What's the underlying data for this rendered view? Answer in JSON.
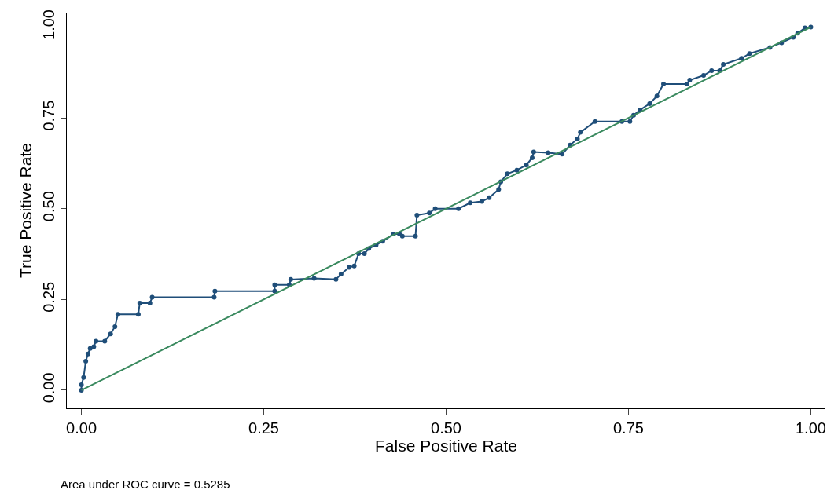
{
  "chart_data": {
    "type": "line",
    "xlabel": "False Positive Rate",
    "ylabel": "True Positive Rate",
    "annotations": [
      "Area under ROC curve = 0.5285"
    ],
    "xlim": [
      -0.02,
      1.02
    ],
    "ylim": [
      -0.05,
      1.04
    ],
    "xticks": [
      {
        "value": 0,
        "label": "0.00"
      },
      {
        "value": 0.25,
        "label": "0.25"
      },
      {
        "value": 0.5,
        "label": "0.50"
      },
      {
        "value": 0.75,
        "label": "0.75"
      },
      {
        "value": 1,
        "label": "1.00"
      }
    ],
    "yticks": [
      {
        "value": 0,
        "label": "0.00"
      },
      {
        "value": 0.25,
        "label": "0.25"
      },
      {
        "value": 0.5,
        "label": "0.50"
      },
      {
        "value": 0.75,
        "label": "0.75"
      },
      {
        "value": 1,
        "label": "1.00"
      }
    ],
    "grid": false,
    "marker": "circle",
    "line_style": "solid",
    "series": [
      {
        "color": "#1f4e79",
        "x": [
          0,
          0,
          0.003,
          0.006,
          0.009,
          0.012,
          0.017,
          0.02,
          0.032,
          0.04,
          0.046,
          0.05,
          0.078,
          0.08,
          0.094,
          0.097,
          0.182,
          0.183,
          0.265,
          0.265,
          0.285,
          0.287,
          0.319,
          0.349,
          0.356,
          0.367,
          0.374,
          0.38,
          0.388,
          0.394,
          0.404,
          0.413,
          0.428,
          0.436,
          0.44,
          0.458,
          0.46,
          0.477,
          0.485,
          0.517,
          0.533,
          0.549,
          0.559,
          0.572,
          0.575,
          0.584,
          0.597,
          0.61,
          0.618,
          0.62,
          0.64,
          0.659,
          0.67,
          0.68,
          0.684,
          0.704,
          0.741,
          0.752,
          0.757,
          0.766,
          0.779,
          0.789,
          0.798,
          0.83,
          0.834,
          0.853,
          0.864,
          0.875,
          0.88,
          0.905,
          0.916,
          0.944,
          0.96,
          0.976,
          0.982,
          0.992,
          1
        ],
        "values": [
          0,
          0.015,
          0.035,
          0.08,
          0.1,
          0.115,
          0.12,
          0.135,
          0.135,
          0.155,
          0.175,
          0.209,
          0.209,
          0.24,
          0.24,
          0.256,
          0.256,
          0.273,
          0.273,
          0.29,
          0.29,
          0.305,
          0.308,
          0.305,
          0.32,
          0.338,
          0.342,
          0.376,
          0.376,
          0.39,
          0.4,
          0.41,
          0.43,
          0.43,
          0.424,
          0.424,
          0.482,
          0.488,
          0.5,
          0.5,
          0.516,
          0.52,
          0.53,
          0.553,
          0.574,
          0.596,
          0.606,
          0.62,
          0.64,
          0.656,
          0.654,
          0.65,
          0.675,
          0.692,
          0.71,
          0.74,
          0.74,
          0.74,
          0.757,
          0.772,
          0.789,
          0.81,
          0.843,
          0.843,
          0.854,
          0.867,
          0.88,
          0.88,
          0.897,
          0.914,
          0.927,
          0.944,
          0.957,
          0.972,
          0.983,
          0.998,
          1
        ]
      },
      {
        "color": "#3a8a5f",
        "marker": "none",
        "x": [
          0,
          1
        ],
        "values": [
          0,
          1
        ]
      }
    ]
  }
}
